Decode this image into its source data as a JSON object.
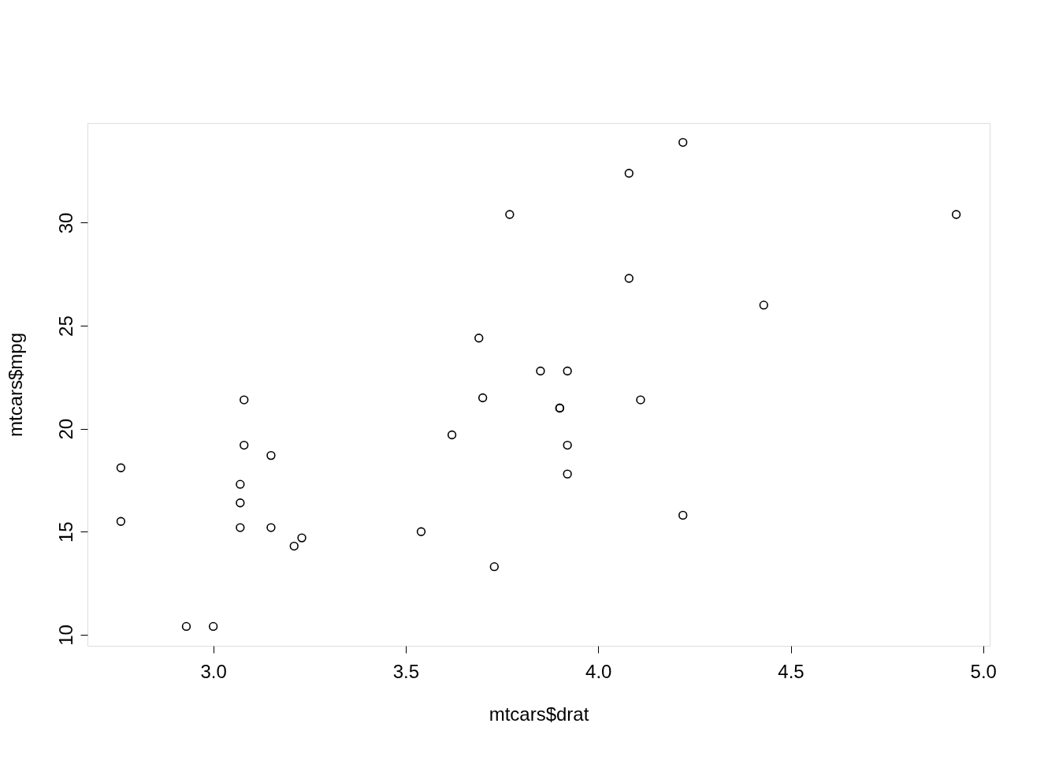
{
  "chart_data": {
    "type": "scatter",
    "xlabel": "mtcars$drat",
    "ylabel": "mtcars$mpg",
    "x": [
      3.9,
      3.9,
      3.85,
      3.08,
      3.15,
      2.76,
      3.21,
      3.69,
      3.92,
      3.92,
      3.92,
      3.07,
      3.07,
      3.07,
      2.93,
      3.0,
      3.23,
      4.08,
      4.93,
      4.22,
      3.7,
      2.76,
      3.15,
      3.73,
      3.08,
      4.08,
      4.43,
      3.77,
      4.22,
      3.62,
      3.54,
      4.11
    ],
    "series": [
      {
        "color": "#000000",
        "values": [
          21.0,
          21.0,
          22.8,
          21.4,
          18.7,
          18.1,
          14.3,
          24.4,
          22.8,
          19.2,
          17.8,
          16.4,
          17.3,
          15.2,
          10.4,
          10.4,
          14.7,
          32.4,
          30.4,
          33.9,
          21.5,
          15.5,
          15.2,
          13.3,
          19.2,
          27.3,
          26.0,
          30.4,
          15.8,
          19.7,
          15.0,
          21.4
        ]
      }
    ],
    "xlim": [
      2.6732,
      5.0168
    ],
    "ylim": [
      9.46,
      34.84
    ],
    "xticks": [
      {
        "value": 3,
        "label": "3.0"
      },
      {
        "value": 3.5,
        "label": "3.5"
      },
      {
        "value": 4,
        "label": "4.0"
      },
      {
        "value": 4.5,
        "label": "4.5"
      },
      {
        "value": 5,
        "label": "5.0"
      }
    ],
    "yticks": [
      10,
      15,
      20,
      25,
      30
    ],
    "grid": false,
    "marker": "circle"
  }
}
